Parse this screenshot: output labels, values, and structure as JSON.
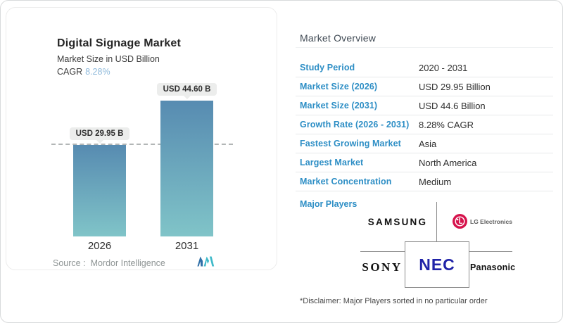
{
  "card": {
    "title": "Digital Signage Market",
    "subtitle": "Market Size in USD Billion",
    "cagr_label": "CAGR",
    "cagr_value": "8.28%",
    "source_label": "Source :",
    "source_value": "Mordor Intelligence"
  },
  "chart_data": {
    "type": "bar",
    "title": "Digital Signage Market",
    "ylabel": "Market Size in USD Billion",
    "cagr": "8.28%",
    "categories": [
      "2026",
      "2031"
    ],
    "values": [
      29.95,
      44.6
    ],
    "bar_labels": [
      "USD 29.95 B",
      "USD 44.60 B"
    ],
    "reference_line_value": 29.95,
    "legend": "none",
    "grid": "off",
    "bar_gradient_top": "#578bb1",
    "bar_gradient_bottom": "#80c4c8",
    "source": "Mordor Intelligence"
  },
  "overview": {
    "heading": "Market Overview",
    "rows": [
      {
        "label": "Study Period",
        "value": "2020 - 2031"
      },
      {
        "label": "Market Size (2026)",
        "value": "USD 29.95 Billion"
      },
      {
        "label": "Market Size (2031)",
        "value": "USD 44.6 Billion"
      },
      {
        "label": "Growth Rate (2026 - 2031)",
        "value": "8.28% CAGR"
      },
      {
        "label": "Fastest Growing Market",
        "value": "Asia"
      },
      {
        "label": "Largest Market",
        "value": "North America"
      },
      {
        "label": "Market Concentration",
        "value": "Medium"
      }
    ],
    "major_players_label": "Major Players",
    "players": {
      "samsung": "SAMSUNG",
      "lg": "LG Electronics",
      "sony": "SONY",
      "nec": "NEC",
      "panasonic": "Panasonic"
    },
    "disclaimer": "*Disclaimer: Major Players sorted in no particular order"
  },
  "colors": {
    "accent_blue": "#2d8ec5",
    "cagr_blue": "#8fbadb",
    "lg_magenta": "#d6134c",
    "nec_navy": "#2023a8",
    "pill_bg": "#ecedec",
    "dashed_line": "#b2b6b6"
  }
}
